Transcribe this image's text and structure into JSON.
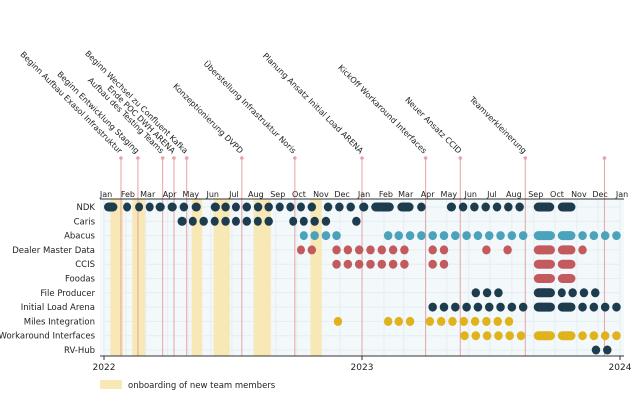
{
  "chart_data": {
    "type": "timeline",
    "title": "",
    "x_range": [
      "2022-01-01",
      "2024-01-01"
    ],
    "year_labels": [
      {
        "label": "2022",
        "at": "2022-01-01"
      },
      {
        "label": "2023",
        "at": "2023-01-01"
      },
      {
        "label": "2024",
        "at": "2024-01-01"
      }
    ],
    "month_labels": [
      "Jan",
      "Feb",
      "Mar",
      "Apr",
      "May",
      "Jun",
      "Jul",
      "Aug",
      "Sep",
      "Oct",
      "Nov",
      "Dec",
      "Jan",
      "Feb",
      "Mar",
      "Apr",
      "May",
      "Jun",
      "Jul",
      "Aug",
      "Sep",
      "Oct",
      "Nov",
      "Dec",
      "Jan"
    ],
    "rows": [
      "NDK",
      "Caris",
      "Abacus",
      "Dealer Master Data",
      "CCIS",
      "Foodas",
      "File Producer",
      "Initial Load Arena",
      "Miles Integration",
      "Workaround Interfaces",
      "RV-Hub"
    ],
    "colors": {
      "navy": "#1d3d4f",
      "teal": "#4aa3bb",
      "red": "#c35a5e",
      "yellow": "#e0b21c",
      "onboarding": "#f7e8b5",
      "milestone_line": "#e7a3a6",
      "grid": "#e6eef2",
      "background": "#f3f8fa"
    },
    "milestones": [
      {
        "label": "Beginn Aufbau Exasol Infrastruktur",
        "date": "2022-01-25"
      },
      {
        "label": "Beginn Entwicklung Staging",
        "date": "2022-02-18"
      },
      {
        "label": "Aufbau des Testing Teams",
        "date": "2022-03-25"
      },
      {
        "label": "Ende POC DWH ARENA",
        "date": "2022-04-10"
      },
      {
        "label": "Beginn Wechsel zu Confluent Kafka",
        "date": "2022-04-28"
      },
      {
        "label": "Konzeptionierung DVPD",
        "date": "2022-07-15"
      },
      {
        "label": "Überstellung Infrastruktur Noris",
        "date": "2022-09-28"
      },
      {
        "label": "Planung Ansatz Initial Load ARENA",
        "date": "2023-01-01"
      },
      {
        "label": "KickOff Workaround Interfaces",
        "date": "2023-04-01"
      },
      {
        "label": "Neuer Ansatz CCID",
        "date": "2023-05-20"
      },
      {
        "label": "Teamverkleinerung",
        "date": "2023-08-20"
      },
      {
        "label": "",
        "date": "2023-12-10"
      }
    ],
    "onboarding_periods": [
      [
        "2022-01-10",
        "2022-01-28"
      ],
      [
        "2022-02-10",
        "2022-02-28"
      ],
      [
        "2022-05-05",
        "2022-05-20"
      ],
      [
        "2022-06-05",
        "2022-06-28"
      ],
      [
        "2022-08-01",
        "2022-08-25"
      ],
      [
        "2022-10-20",
        "2022-11-05"
      ]
    ],
    "series": [
      {
        "name": "NDK",
        "color": "navy",
        "segments": [
          [
            "2022-01-01",
            "2022-01-20"
          ],
          [
            "2022-01-28",
            "2022-02-08"
          ],
          [
            "2022-02-14",
            "2022-02-25"
          ],
          [
            "2022-03-01",
            "2022-03-12"
          ],
          [
            "2022-03-15",
            "2022-03-28"
          ],
          [
            "2022-04-01",
            "2022-04-14"
          ],
          [
            "2022-04-18",
            "2022-04-30"
          ],
          [
            "2022-05-05",
            "2022-05-18"
          ],
          [
            "2022-06-01",
            "2022-06-14"
          ],
          [
            "2022-06-16",
            "2022-06-28"
          ],
          [
            "2022-07-01",
            "2022-07-12"
          ],
          [
            "2022-07-16",
            "2022-07-28"
          ],
          [
            "2022-08-01",
            "2022-08-13"
          ],
          [
            "2022-08-16",
            "2022-08-28"
          ],
          [
            "2022-09-01",
            "2022-09-12"
          ],
          [
            "2022-09-16",
            "2022-09-27"
          ],
          [
            "2022-10-01",
            "2022-10-12"
          ],
          [
            "2022-10-16",
            "2022-10-28"
          ],
          [
            "2022-11-08",
            "2022-11-20"
          ],
          [
            "2022-11-24",
            "2022-12-06"
          ],
          [
            "2022-12-10",
            "2022-12-22"
          ],
          [
            "2022-12-28",
            "2023-01-10"
          ],
          [
            "2023-01-14",
            "2023-02-15"
          ],
          [
            "2023-02-20",
            "2023-03-15"
          ],
          [
            "2023-03-20",
            "2023-04-01"
          ],
          [
            "2023-05-01",
            "2023-05-14"
          ],
          [
            "2023-05-18",
            "2023-05-30"
          ],
          [
            "2023-06-03",
            "2023-06-15"
          ],
          [
            "2023-06-19",
            "2023-07-01"
          ],
          [
            "2023-07-05",
            "2023-07-17"
          ],
          [
            "2023-07-21",
            "2023-08-02"
          ],
          [
            "2023-08-06",
            "2023-08-18"
          ],
          [
            "2023-09-01",
            "2023-09-30"
          ],
          [
            "2023-10-05",
            "2023-10-30"
          ]
        ]
      },
      {
        "name": "Caris",
        "color": "navy",
        "segments": [
          [
            "2022-04-15",
            "2022-04-28"
          ],
          [
            "2022-05-01",
            "2022-05-12"
          ],
          [
            "2022-05-16",
            "2022-05-28"
          ],
          [
            "2022-06-01",
            "2022-06-12"
          ],
          [
            "2022-06-16",
            "2022-06-28"
          ],
          [
            "2022-07-01",
            "2022-07-12"
          ],
          [
            "2022-07-16",
            "2022-07-28"
          ],
          [
            "2022-08-01",
            "2022-08-12"
          ],
          [
            "2022-08-16",
            "2022-08-28"
          ],
          [
            "2022-09-20",
            "2022-10-01"
          ],
          [
            "2022-10-05",
            "2022-10-16"
          ],
          [
            "2022-10-20",
            "2022-11-01"
          ],
          [
            "2022-11-05",
            "2022-11-17"
          ],
          [
            "2022-12-18",
            "2022-12-30"
          ]
        ]
      },
      {
        "name": "Abacus",
        "color": "teal",
        "segments": [
          [
            "2022-10-05",
            "2022-10-16"
          ],
          [
            "2022-10-20",
            "2022-11-01"
          ],
          [
            "2022-11-05",
            "2022-11-17"
          ],
          [
            "2022-11-20",
            "2022-12-02"
          ],
          [
            "2023-02-01",
            "2023-02-13"
          ],
          [
            "2023-02-16",
            "2023-02-28"
          ],
          [
            "2023-03-04",
            "2023-03-16"
          ],
          [
            "2023-03-20",
            "2023-04-01"
          ],
          [
            "2023-04-05",
            "2023-04-17"
          ],
          [
            "2023-04-21",
            "2023-05-03"
          ],
          [
            "2023-05-07",
            "2023-05-19"
          ],
          [
            "2023-05-23",
            "2023-06-04"
          ],
          [
            "2023-06-08",
            "2023-06-20"
          ],
          [
            "2023-06-24",
            "2023-07-06"
          ],
          [
            "2023-07-10",
            "2023-07-22"
          ],
          [
            "2023-07-26",
            "2023-08-07"
          ],
          [
            "2023-08-11",
            "2023-08-23"
          ],
          [
            "2023-09-01",
            "2023-10-01"
          ],
          [
            "2023-10-05",
            "2023-10-30"
          ],
          [
            "2023-11-03",
            "2023-11-15"
          ],
          [
            "2023-11-19",
            "2023-12-01"
          ],
          [
            "2023-12-05",
            "2023-12-17"
          ],
          [
            "2023-12-21",
            "2024-01-02"
          ]
        ]
      },
      {
        "name": "Dealer Master Data",
        "color": "red",
        "segments": [
          [
            "2022-10-01",
            "2022-10-12"
          ],
          [
            "2022-10-16",
            "2022-10-28"
          ],
          [
            "2022-11-20",
            "2022-12-02"
          ],
          [
            "2022-12-06",
            "2022-12-18"
          ],
          [
            "2022-12-22",
            "2023-01-03"
          ],
          [
            "2023-01-07",
            "2023-01-19"
          ],
          [
            "2023-01-23",
            "2023-02-04"
          ],
          [
            "2023-02-08",
            "2023-02-20"
          ],
          [
            "2023-02-24",
            "2023-03-08"
          ],
          [
            "2023-04-05",
            "2023-04-17"
          ],
          [
            "2023-04-21",
            "2023-05-03"
          ],
          [
            "2023-06-20",
            "2023-07-02"
          ],
          [
            "2023-07-20",
            "2023-08-01"
          ],
          [
            "2023-09-01",
            "2023-10-01"
          ],
          [
            "2023-10-05",
            "2023-10-30"
          ],
          [
            "2023-11-03",
            "2023-11-15"
          ]
        ]
      },
      {
        "name": "CCIS",
        "color": "red",
        "segments": [
          [
            "2022-11-20",
            "2022-12-02"
          ],
          [
            "2022-12-06",
            "2022-12-18"
          ],
          [
            "2022-12-22",
            "2023-01-03"
          ],
          [
            "2023-01-07",
            "2023-01-19"
          ],
          [
            "2023-01-23",
            "2023-02-04"
          ],
          [
            "2023-02-08",
            "2023-02-20"
          ],
          [
            "2023-02-24",
            "2023-03-08"
          ],
          [
            "2023-04-05",
            "2023-04-17"
          ],
          [
            "2023-04-21",
            "2023-05-03"
          ],
          [
            "2023-09-01",
            "2023-10-01"
          ],
          [
            "2023-10-05",
            "2023-10-30"
          ]
        ]
      },
      {
        "name": "Foodas",
        "color": "red",
        "segments": [
          [
            "2023-09-01",
            "2023-10-01"
          ],
          [
            "2023-10-05",
            "2023-10-30"
          ]
        ]
      },
      {
        "name": "File Producer",
        "color": "navy",
        "segments": [
          [
            "2023-06-05",
            "2023-06-17"
          ],
          [
            "2023-06-21",
            "2023-07-03"
          ],
          [
            "2023-07-07",
            "2023-07-19"
          ],
          [
            "2023-09-01",
            "2023-10-01"
          ],
          [
            "2023-10-05",
            "2023-10-16"
          ],
          [
            "2023-10-20",
            "2023-11-01"
          ],
          [
            "2023-11-05",
            "2023-11-17"
          ],
          [
            "2023-11-21",
            "2023-12-03"
          ]
        ]
      },
      {
        "name": "Initial Load Arena",
        "color": "navy",
        "segments": [
          [
            "2023-04-05",
            "2023-04-17"
          ],
          [
            "2023-04-21",
            "2023-05-03"
          ],
          [
            "2023-05-07",
            "2023-05-19"
          ],
          [
            "2023-05-23",
            "2023-06-04"
          ],
          [
            "2023-06-08",
            "2023-06-20"
          ],
          [
            "2023-06-24",
            "2023-07-06"
          ],
          [
            "2023-07-10",
            "2023-07-22"
          ],
          [
            "2023-07-26",
            "2023-08-07"
          ],
          [
            "2023-08-11",
            "2023-08-23"
          ],
          [
            "2023-09-01",
            "2023-10-01"
          ],
          [
            "2023-10-05",
            "2023-10-30"
          ],
          [
            "2023-11-03",
            "2023-11-15"
          ],
          [
            "2023-11-19",
            "2023-12-01"
          ],
          [
            "2023-12-05",
            "2023-12-17"
          ],
          [
            "2023-12-21",
            "2024-01-02"
          ]
        ]
      },
      {
        "name": "Miles Integration",
        "color": "yellow",
        "segments": [
          [
            "2022-11-22",
            "2022-12-04"
          ],
          [
            "2023-02-01",
            "2023-02-13"
          ],
          [
            "2023-02-16",
            "2023-02-28"
          ],
          [
            "2023-03-04",
            "2023-03-16"
          ],
          [
            "2023-04-01",
            "2023-04-13"
          ],
          [
            "2023-04-17",
            "2023-04-29"
          ],
          [
            "2023-05-03",
            "2023-05-15"
          ],
          [
            "2023-05-19",
            "2023-05-31"
          ],
          [
            "2023-06-04",
            "2023-06-16"
          ],
          [
            "2023-06-20",
            "2023-07-02"
          ],
          [
            "2023-07-06",
            "2023-07-18"
          ],
          [
            "2023-07-22",
            "2023-08-03"
          ]
        ]
      },
      {
        "name": "Workaround Interfaces",
        "color": "yellow",
        "segments": [
          [
            "2023-05-20",
            "2023-06-01"
          ],
          [
            "2023-06-05",
            "2023-06-17"
          ],
          [
            "2023-06-21",
            "2023-07-03"
          ],
          [
            "2023-07-07",
            "2023-07-19"
          ],
          [
            "2023-07-23",
            "2023-08-04"
          ],
          [
            "2023-08-08",
            "2023-08-20"
          ],
          [
            "2023-09-01",
            "2023-10-01"
          ],
          [
            "2023-10-05",
            "2023-10-30"
          ],
          [
            "2023-11-03",
            "2023-11-15"
          ],
          [
            "2023-11-19",
            "2023-12-01"
          ],
          [
            "2023-12-05",
            "2023-12-17"
          ],
          [
            "2023-12-21",
            "2024-01-02"
          ]
        ]
      },
      {
        "name": "RV-Hub",
        "color": "navy",
        "segments": [
          [
            "2023-11-22",
            "2023-12-04"
          ],
          [
            "2023-12-08",
            "2023-12-20"
          ]
        ]
      }
    ],
    "legend": [
      {
        "label": "onboarding of new team members",
        "color": "onboarding"
      }
    ]
  }
}
